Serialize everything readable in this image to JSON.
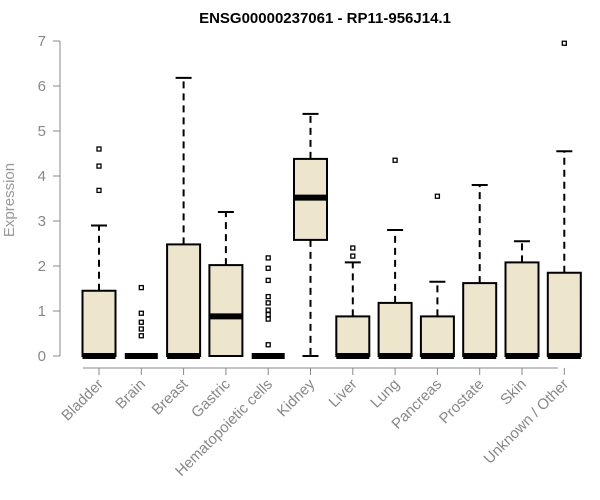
{
  "chart_data": {
    "type": "boxplot",
    "title": "ENSG00000237061 - RP11-956J14.1",
    "xlabel": "",
    "ylabel": "Expression",
    "ylim": [
      0,
      7
    ],
    "yticks": [
      0,
      1,
      2,
      3,
      4,
      5,
      6,
      7
    ],
    "box_fill": "#ede5cc",
    "axis_color": "#888888",
    "categories": [
      "Bladder",
      "Brain",
      "Breast",
      "Gastric",
      "Hematopoietic cells",
      "Kidney",
      "Liver",
      "Lung",
      "Pancreas",
      "Prostate",
      "Skin",
      "Unknown / Other"
    ],
    "boxes": [
      {
        "label": "Bladder",
        "whisker_low": 0,
        "q1": 0,
        "median": 0,
        "q3": 1.45,
        "whisker_high": 2.9,
        "outliers": [
          3.68,
          4.22,
          4.6
        ]
      },
      {
        "label": "Brain",
        "whisker_low": 0,
        "q1": 0,
        "median": 0,
        "q3": 0,
        "whisker_high": 0,
        "outliers": [
          0.45,
          0.6,
          0.75,
          0.95,
          1.52
        ]
      },
      {
        "label": "Breast",
        "whisker_low": 0,
        "q1": 0,
        "median": 0,
        "q3": 2.48,
        "whisker_high": 6.18,
        "outliers": []
      },
      {
        "label": "Gastric",
        "whisker_low": 0,
        "q1": 0,
        "median": 0.88,
        "q3": 2.02,
        "whisker_high": 3.2,
        "outliers": []
      },
      {
        "label": "Hematopoietic cells",
        "whisker_low": 0,
        "q1": 0,
        "median": 0,
        "q3": 0,
        "whisker_high": 0,
        "outliers": [
          0.25,
          0.82,
          0.92,
          1.02,
          1.18,
          1.32,
          1.68,
          1.95,
          2.18
        ]
      },
      {
        "label": "Kidney",
        "whisker_low": 0,
        "q1": 2.58,
        "median": 3.52,
        "q3": 4.38,
        "whisker_high": 5.38,
        "outliers": []
      },
      {
        "label": "Liver",
        "whisker_low": 0,
        "q1": 0,
        "median": 0,
        "q3": 0.88,
        "whisker_high": 2.08,
        "outliers": [
          2.22,
          2.4
        ]
      },
      {
        "label": "Lung",
        "whisker_low": 0,
        "q1": 0,
        "median": 0,
        "q3": 1.18,
        "whisker_high": 2.8,
        "outliers": [
          4.35
        ]
      },
      {
        "label": "Pancreas",
        "whisker_low": 0,
        "q1": 0,
        "median": 0,
        "q3": 0.88,
        "whisker_high": 1.65,
        "outliers": [
          3.55
        ]
      },
      {
        "label": "Prostate",
        "whisker_low": 0,
        "q1": 0,
        "median": 0,
        "q3": 1.62,
        "whisker_high": 3.8,
        "outliers": []
      },
      {
        "label": "Skin",
        "whisker_low": 0,
        "q1": 0,
        "median": 0,
        "q3": 2.08,
        "whisker_high": 2.55,
        "outliers": []
      },
      {
        "label": "Unknown / Other",
        "whisker_low": 0,
        "q1": 0,
        "median": 0,
        "q3": 1.85,
        "whisker_high": 4.55,
        "outliers": [
          6.95
        ]
      }
    ]
  }
}
